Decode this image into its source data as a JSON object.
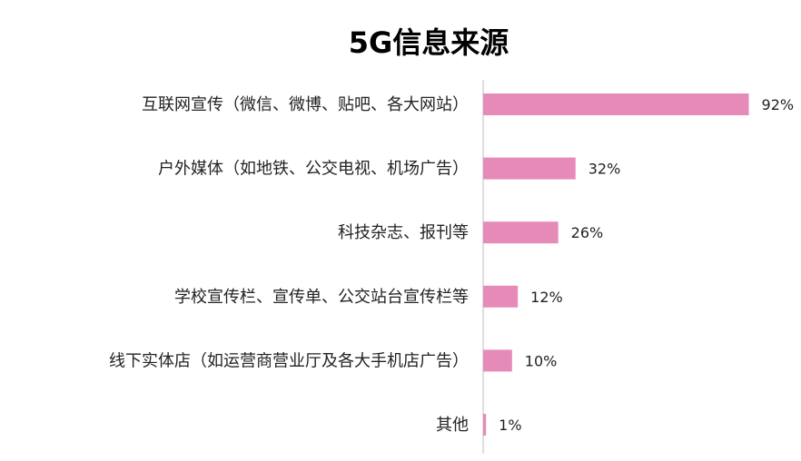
{
  "chart_data": {
    "type": "bar",
    "orientation": "horizontal",
    "title": "5G信息来源",
    "categories": [
      "互联网宣传（微信、微博、贴吧、各大网站）",
      "户外媒体（如地铁、公交电视、机场广告）",
      "科技杂志、报刊等",
      "学校宣传栏、宣传单、公交站台宣传栏等",
      "线下实体店（如运营商营业厅及各大手机店广告）",
      "其他"
    ],
    "values": [
      92,
      32,
      26,
      12,
      10,
      1
    ],
    "value_labels": [
      "92%",
      "32%",
      "26%",
      "12%",
      "10%",
      "1%"
    ],
    "xlim": [
      0,
      100
    ],
    "grid": false,
    "legend": "none",
    "colors": {
      "bar": "#e68ab8",
      "axis": "#bfbfbf",
      "text": "#222222"
    }
  }
}
